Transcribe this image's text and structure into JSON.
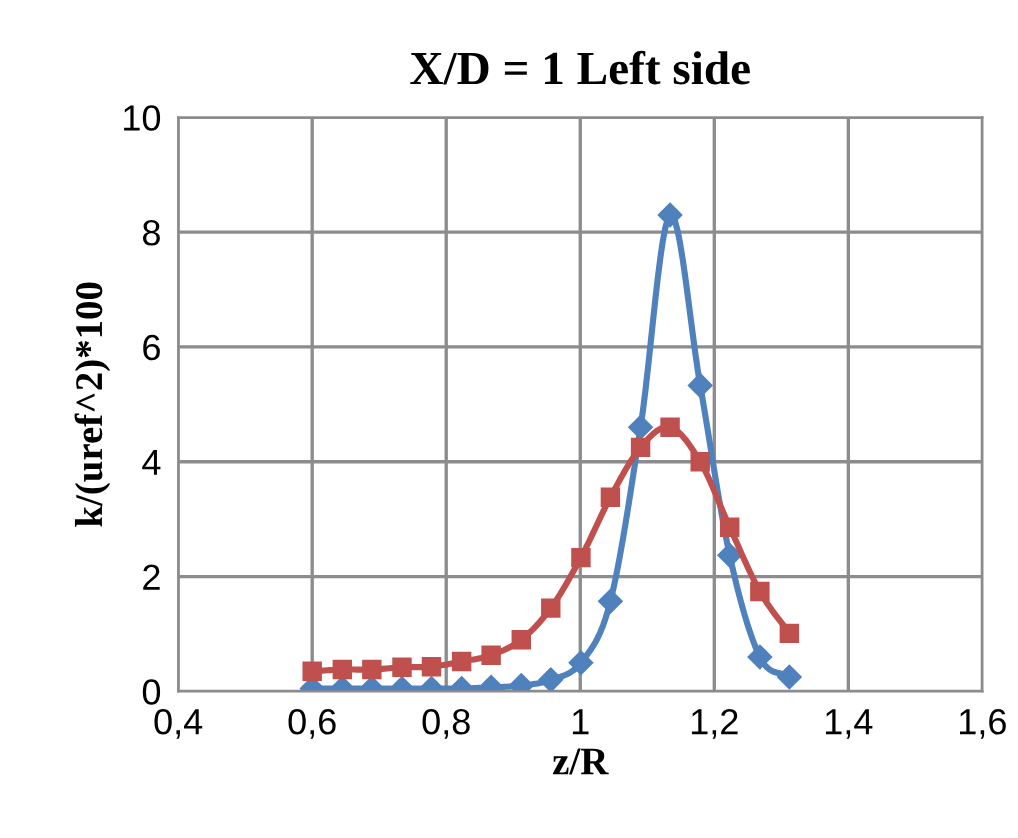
{
  "chart_data": {
    "type": "line",
    "title": "X/D = 1 Left side",
    "xlabel": "z/R",
    "ylabel": "k/(uref^2)*100",
    "x": [
      0.6,
      0.645,
      0.689,
      0.734,
      0.778,
      0.823,
      0.867,
      0.912,
      0.956,
      1.001,
      1.045,
      1.09,
      1.134,
      1.179,
      1.223,
      1.268,
      1.312
    ],
    "series": [
      {
        "color": "#4f81bd",
        "marker": "diamond",
        "values": [
          0.05,
          0.05,
          0.05,
          0.05,
          0.05,
          0.05,
          0.07,
          0.1,
          0.2,
          0.5,
          1.57,
          4.6,
          8.3,
          5.33,
          2.37,
          0.6,
          0.25
        ]
      },
      {
        "color": "#c0504d",
        "marker": "square",
        "values": [
          0.35,
          0.38,
          0.38,
          0.42,
          0.43,
          0.52,
          0.63,
          0.9,
          1.45,
          2.33,
          3.38,
          4.25,
          4.6,
          4.0,
          2.86,
          1.74,
          1.01
        ]
      }
    ],
    "xlim": [
      0.4,
      1.6
    ],
    "xticks": [
      {
        "value": 0.4,
        "label": "0,4"
      },
      {
        "value": 0.6,
        "label": "0,6"
      },
      {
        "value": 0.8,
        "label": "0,8"
      },
      {
        "value": 1,
        "label": "1"
      },
      {
        "value": 1.2,
        "label": "1,2"
      },
      {
        "value": 1.4,
        "label": "1,4"
      },
      {
        "value": 1.6,
        "label": "1,6"
      }
    ],
    "ylim": [
      0,
      10
    ],
    "yticks": [
      0,
      2,
      4,
      6,
      8,
      10
    ],
    "grid": true,
    "legend": false
  }
}
